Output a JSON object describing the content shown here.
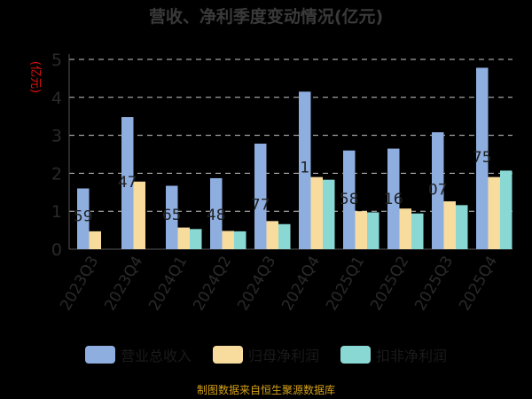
{
  "chart_data": {
    "type": "bar",
    "title": "营收、净利季度变动情况(亿元)",
    "ylabel": "(亿元)",
    "ylim": [
      0,
      5
    ],
    "yticks": [
      "0",
      "1",
      "2",
      "3",
      "4",
      "5"
    ],
    "grid": "horizontal dashed",
    "legend_position": "bottom",
    "categories": [
      "2023Q3",
      "2023Q4",
      "2024Q1",
      "2024Q2",
      "2024Q3",
      "2024Q4",
      "2025Q1",
      "2025Q2",
      "2025Q3",
      "2025Q4"
    ],
    "series": [
      {
        "name": "营业总收入",
        "color": "#8eaee0",
        "values": [
          1.6,
          3.48,
          1.67,
          1.87,
          2.78,
          4.15,
          2.6,
          2.65,
          3.08,
          4.78
        ]
      },
      {
        "name": "归母净利润",
        "color": "#f8dc9e",
        "values": [
          0.47,
          1.78,
          0.57,
          0.48,
          0.74,
          1.9,
          1.0,
          1.07,
          1.26,
          1.9
        ]
      },
      {
        "name": "扣非净利润",
        "color": "#8ad8d4",
        "values": [
          null,
          null,
          0.53,
          0.47,
          0.66,
          1.83,
          0.97,
          0.94,
          1.16,
          2.07
        ]
      }
    ],
    "data_labels": [
      "59",
      "47",
      "65",
      "48",
      "77",
      "1",
      "58",
      "16",
      "07",
      "75"
    ],
    "label_series_index": 0,
    "label_heights": [
      0.9,
      1.8,
      0.93,
      0.93,
      1.2,
      2.18,
      1.35,
      1.35,
      1.6,
      2.45
    ]
  },
  "footer": "制图数据来自恒生聚源数据库"
}
